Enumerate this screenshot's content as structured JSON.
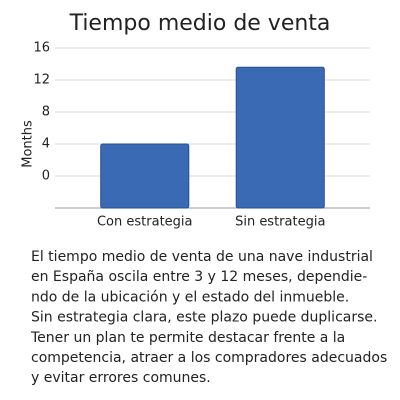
{
  "chart_data": {
    "type": "bar",
    "title": "Tiempo medio de venta",
    "y_label": "Months",
    "categories": [
      "Con estrategia",
      "Sin estrategia"
    ],
    "values": [
      4,
      13.6
    ],
    "color": "#3a6ab4",
    "ylim": [
      -4,
      16
    ],
    "yticks": [
      0,
      4,
      8,
      12,
      16
    ],
    "grid": true
  },
  "text": {
    "lines": [
      "El tiempo medio de venta de una nave industrial",
      "en España oscila entre 3 y 12 meses, dependie-",
      "ndo de la ubicación y el estado del inmueble.",
      "Sin estrategia clara, este plazo puede duplicarse.",
      "Tener un plan te permite destacar frente a la",
      "competencia, atraer a los compradores adecuados",
      "y evitar errores comunes."
    ]
  }
}
